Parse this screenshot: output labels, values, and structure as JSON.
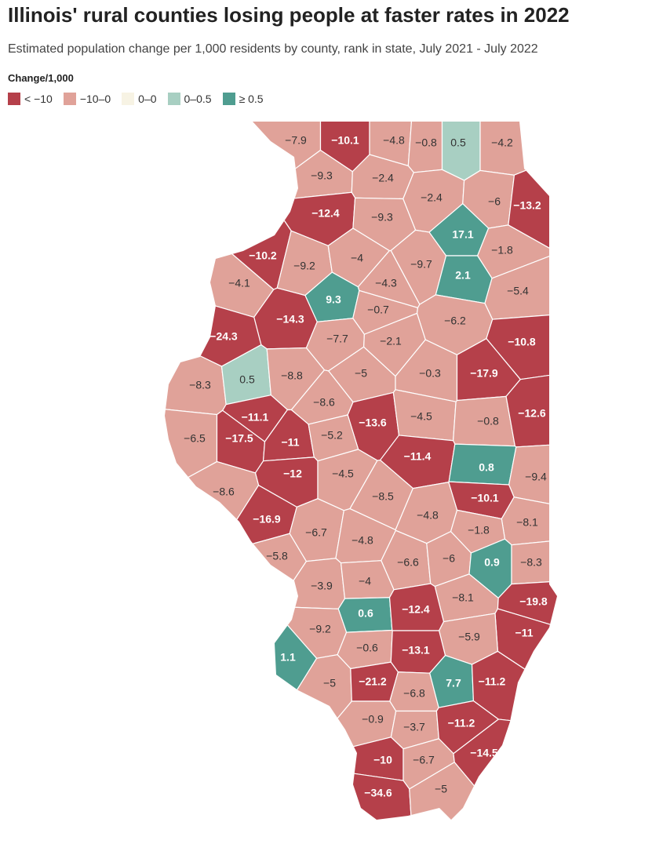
{
  "title": "Illinois' rural counties losing people at faster rates in 2022",
  "subtitle": "Estimated population change per 1,000 residents by county, rank in state, July 2021 - July 2022",
  "legend": {
    "title": "Change/1,000",
    "items": [
      {
        "label": "< −10",
        "max": -10,
        "color": "#b5404a",
        "label_color": "#ffffff"
      },
      {
        "label": "−10–0",
        "max": 0,
        "color": "#e0a299",
        "label_color": "#333333"
      },
      {
        "label": "0–0",
        "max": 0,
        "color": "#f7f3e4",
        "label_color": "#333333"
      },
      {
        "label": "0–0.5",
        "max": 0.5,
        "color": "#a8cfc2",
        "label_color": "#333333"
      },
      {
        "label": "≥ 0.5",
        "color": "#4f9d90",
        "label_color": "#ffffff"
      }
    ]
  },
  "counties": {
    "values": [
      -7.9,
      -10.1,
      -4.8,
      -0.8,
      0.5,
      -4.2,
      -9.3,
      -2.4,
      -2.4,
      -6,
      -13.2,
      -12.4,
      -9.3,
      17.1,
      -1.8,
      -10.2,
      -9.2,
      -4,
      -9.7,
      2.1,
      -4.1,
      9.3,
      -4.3,
      -5.4,
      -14.3,
      -0.7,
      -6.2,
      -10.8,
      -24.3,
      -7.7,
      -2.1,
      -8.3,
      0.5,
      -8.8,
      -5,
      -0.3,
      -17.9,
      -8.6,
      -11.1,
      -13.6,
      -4.5,
      -0.8,
      -12.6,
      -6.5,
      -17.5,
      -11,
      -5.2,
      -11.4,
      -12,
      -4.5,
      0.8,
      -9.4,
      -10.1,
      -8.6,
      -8.5,
      -4.8,
      -8.1,
      -16.9,
      -6.7,
      -4.8,
      -1.8,
      -5.8,
      -6.6,
      -6,
      0.9,
      -8.3,
      -3.9,
      -4,
      -8.1,
      -19.8,
      0.6,
      -12.4,
      -11,
      -9.2,
      -5.9,
      -0.6,
      -13.1,
      1.1,
      -5,
      -21.2,
      -6.8,
      7.7,
      -11.2,
      -0.9,
      -3.7,
      -11.2,
      -10,
      -6.7,
      -14.5,
      -34.6,
      -5
    ],
    "value_labels": [
      "−7.9",
      "−10.1",
      "−4.8",
      "−0.8",
      "0.5",
      "−4.2",
      "−9.3",
      "−2.4",
      "−2.4",
      "−6",
      "−13.2",
      "−12.4",
      "−9.3",
      "17.1",
      "−1.8",
      "−10.2",
      "−9.2",
      "−4",
      "−9.7",
      "2.1",
      "−4.1",
      "9.3",
      "−4.3",
      "−5.4",
      "−14.3",
      "−0.7",
      "−6.2",
      "−10.8",
      "−24.3",
      "−7.7",
      "−2.1",
      "−8.3",
      "0.5",
      "−8.8",
      "−5",
      "−0.3",
      "−17.9",
      "−8.6",
      "−11.1",
      "−13.6",
      "−4.5",
      "−0.8",
      "−12.6",
      "−6.5",
      "−17.5",
      "−11",
      "−5.2",
      "−11.4",
      "−12",
      "−4.5",
      "0.8",
      "−9.4",
      "−10.1",
      "−8.6",
      "−8.5",
      "−4.8",
      "−8.1",
      "−16.9",
      "−6.7",
      "−4.8",
      "−1.8",
      "−5.8",
      "−6.6",
      "−6",
      "0.9",
      "−8.3",
      "−3.9",
      "−4",
      "−8.1",
      "−19.8",
      "0.6",
      "−12.4",
      "−11",
      "−9.2",
      "−5.9",
      "−0.6",
      "−13.1",
      "1.1",
      "−5",
      "−21.2",
      "−6.8",
      "7.7",
      "−11.2",
      "−0.9",
      "−3.7",
      "−11.2",
      "−10",
      "−6.7",
      "−14.5",
      "−34.6",
      "−5"
    ]
  }
}
